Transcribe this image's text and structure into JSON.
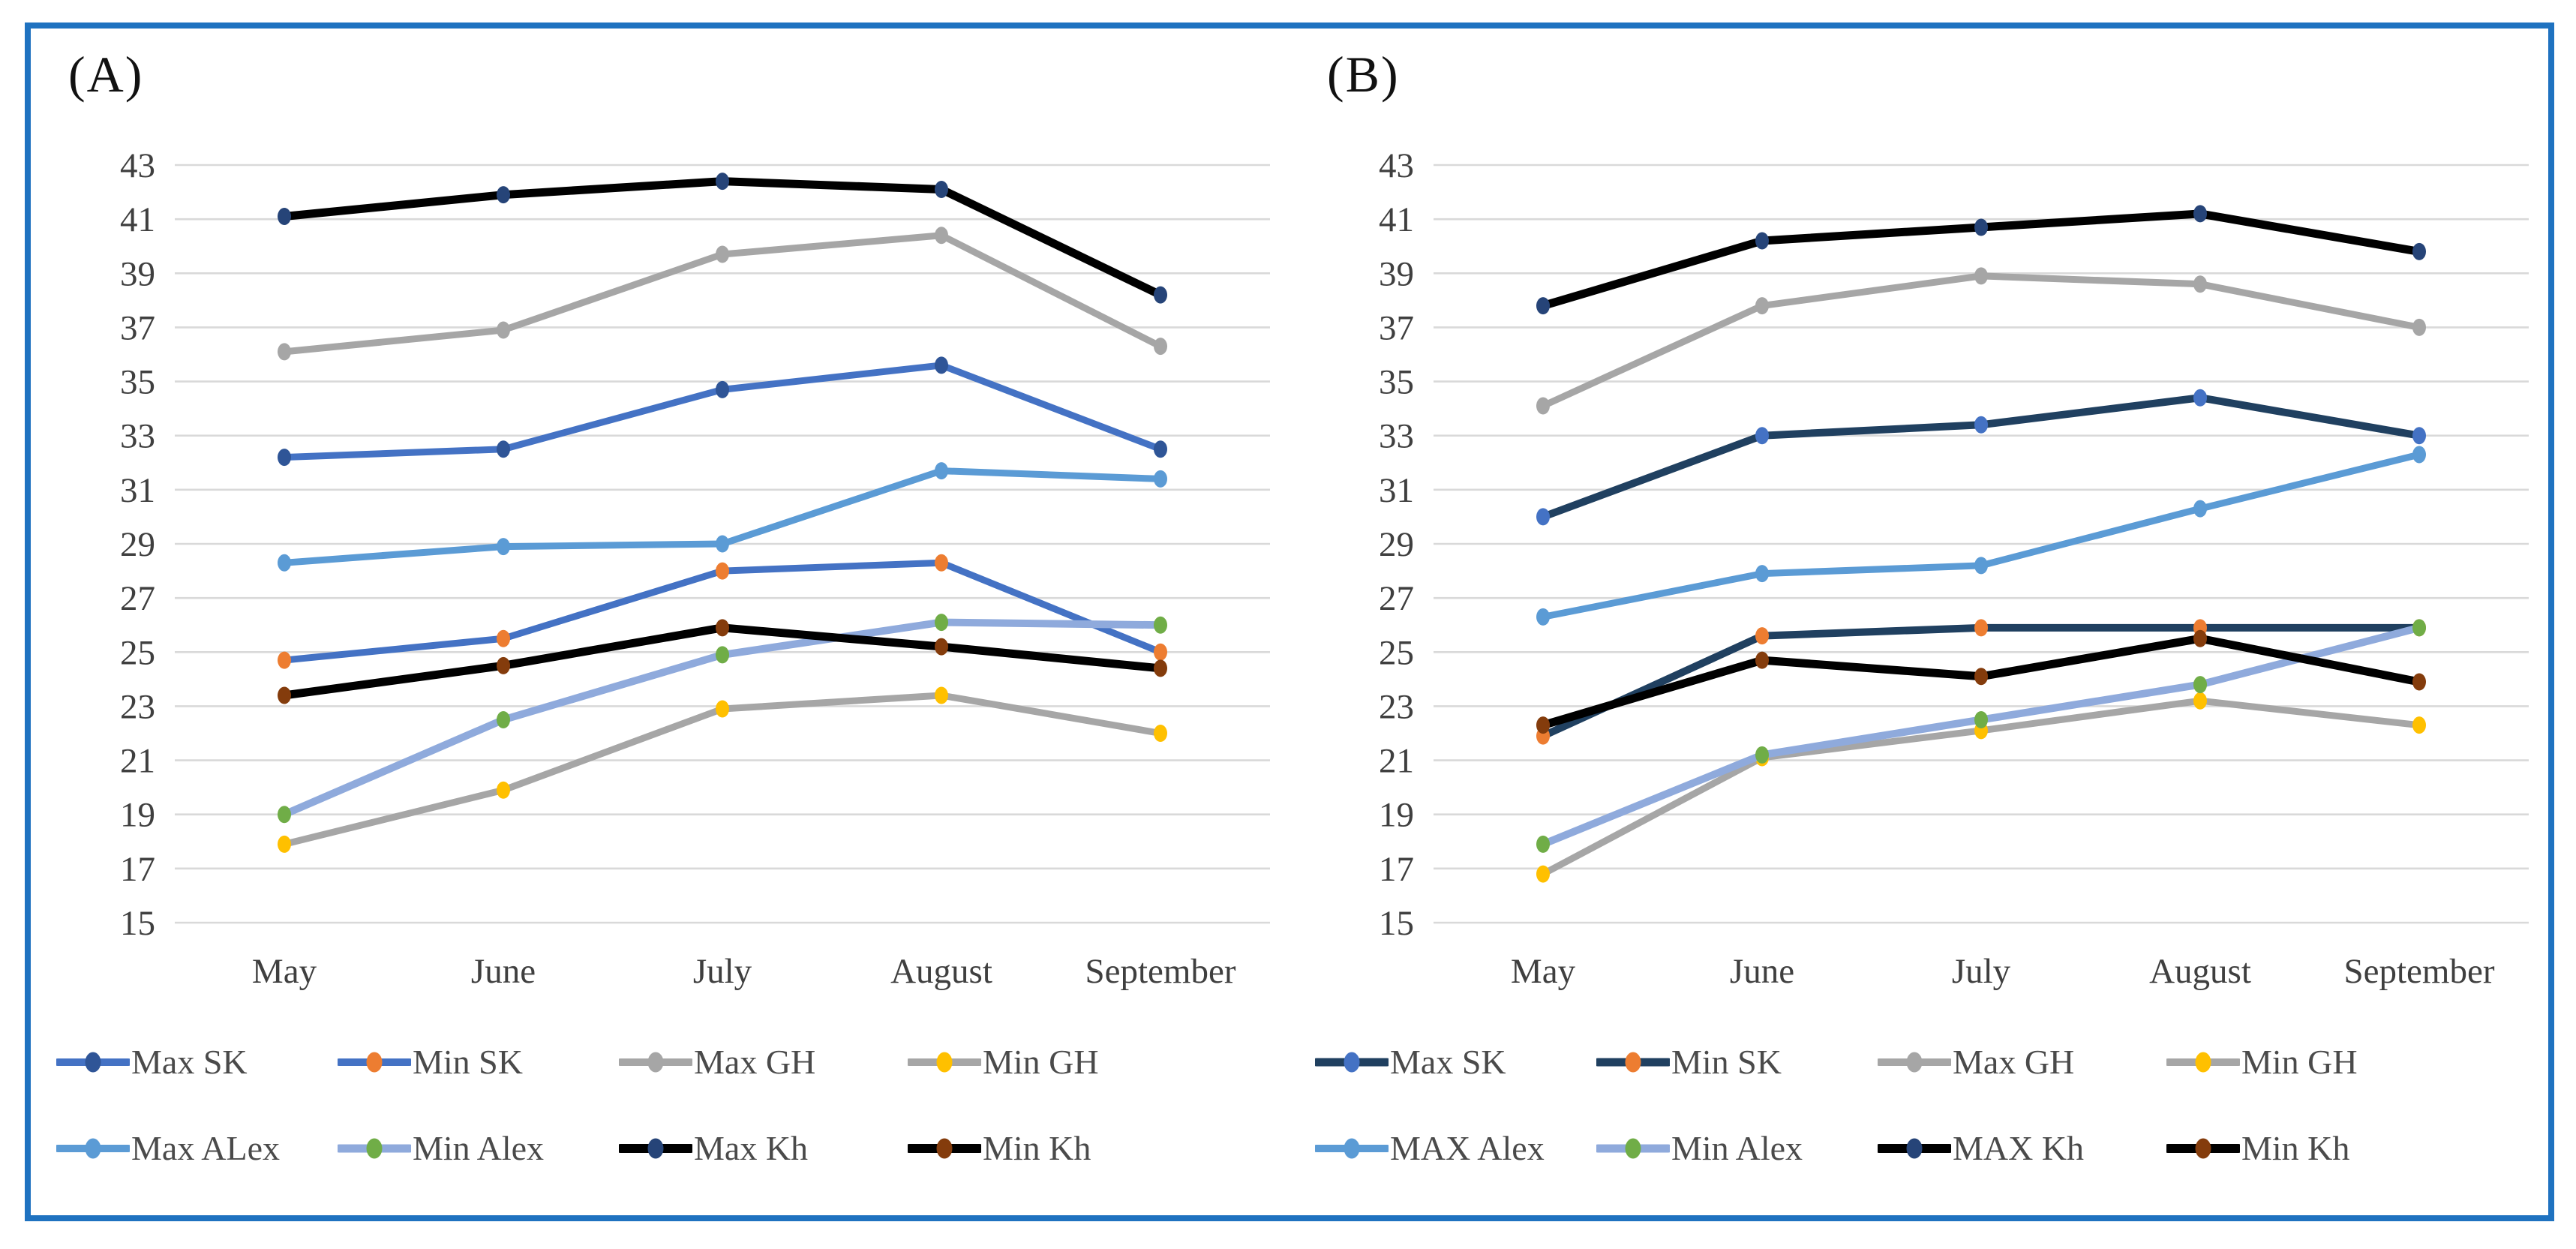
{
  "style": {
    "frame_border": "#1F72C0",
    "gridline": "#D9D9D9",
    "tick_text": "#3f3f3f",
    "month_text": "#3f3f3f",
    "legend_text": "#4a4a4a",
    "background": "#ffffff"
  },
  "panels": [
    {
      "title": "(A)"
    },
    {
      "title": "(B)"
    }
  ],
  "chart_data": [
    {
      "type": "line",
      "title": "(A)",
      "categories": [
        "May",
        "June",
        "July",
        "August",
        "September"
      ],
      "ylim": [
        15,
        43
      ],
      "yticks": [
        43,
        41,
        39,
        37,
        35,
        33,
        31,
        29,
        27,
        25,
        23,
        21,
        19,
        17,
        15
      ],
      "grid": "on",
      "legend_position": "bottom",
      "series": [
        {
          "name": "Max SK",
          "line_color": "#4472C4",
          "marker_color": "#2F5597",
          "line_width": 9,
          "values": [
            32.2,
            32.5,
            34.7,
            35.6,
            32.5
          ]
        },
        {
          "name": "Min SK",
          "line_color": "#4472C4",
          "marker_color": "#ED7D31",
          "line_width": 9,
          "values": [
            24.7,
            25.5,
            28.0,
            28.3,
            25.0
          ]
        },
        {
          "name": "Max GH",
          "line_color": "#A6A6A6",
          "marker_color": "#A6A6A6",
          "line_width": 9,
          "values": [
            36.1,
            36.9,
            39.7,
            40.4,
            36.3
          ]
        },
        {
          "name": "Min GH",
          "line_color": "#A6A6A6",
          "marker_color": "#FFC000",
          "line_width": 9,
          "values": [
            17.9,
            19.9,
            22.9,
            23.4,
            22.0
          ]
        },
        {
          "name": "Max ALex",
          "line_color": "#5B9BD5",
          "marker_color": "#5B9BD5",
          "line_width": 9,
          "values": [
            28.3,
            28.9,
            29.0,
            31.7,
            31.4
          ]
        },
        {
          "name": "Min Alex",
          "line_color": "#8FAADC",
          "marker_color": "#70AD47",
          "line_width": 10,
          "values": [
            19.0,
            22.5,
            24.9,
            26.1,
            26.0
          ]
        },
        {
          "name": "Max Kh",
          "line_color": "#000000",
          "marker_color": "#264478",
          "line_width": 11,
          "values": [
            41.1,
            41.9,
            42.4,
            42.1,
            38.2
          ]
        },
        {
          "name": "Min Kh",
          "line_color": "#000000",
          "marker_color": "#843C0C",
          "line_width": 11,
          "values": [
            23.4,
            24.5,
            25.9,
            25.2,
            24.4
          ]
        }
      ]
    },
    {
      "type": "line",
      "title": "(B)",
      "categories": [
        "May",
        "June",
        "July",
        "August",
        "September"
      ],
      "ylim": [
        15,
        43
      ],
      "yticks": [
        43,
        41,
        39,
        37,
        35,
        33,
        31,
        29,
        27,
        25,
        23,
        21,
        19,
        17,
        15
      ],
      "grid": "on",
      "legend_position": "bottom",
      "series": [
        {
          "name": "Max SK",
          "line_color": "#204060",
          "marker_color": "#4472C4",
          "line_width": 10,
          "values": [
            30.0,
            33.0,
            33.4,
            34.4,
            33.0
          ]
        },
        {
          "name": "Min SK",
          "line_color": "#204060",
          "marker_color": "#ED7D31",
          "line_width": 10,
          "values": [
            21.9,
            25.6,
            25.9,
            25.9,
            25.9
          ]
        },
        {
          "name": "Max GH",
          "line_color": "#A6A6A6",
          "marker_color": "#A6A6A6",
          "line_width": 9,
          "values": [
            34.1,
            37.8,
            38.9,
            38.6,
            37.0
          ]
        },
        {
          "name": "Min GH",
          "line_color": "#A6A6A6",
          "marker_color": "#FFC000",
          "line_width": 9,
          "values": [
            16.8,
            21.1,
            22.1,
            23.2,
            22.3
          ]
        },
        {
          "name": "MAX Alex",
          "line_color": "#5B9BD5",
          "marker_color": "#5B9BD5",
          "line_width": 9,
          "values": [
            26.3,
            27.9,
            28.2,
            30.3,
            32.3
          ]
        },
        {
          "name": "Min Alex",
          "line_color": "#8FAADC",
          "marker_color": "#70AD47",
          "line_width": 10,
          "values": [
            17.9,
            21.2,
            22.5,
            23.8,
            25.9
          ]
        },
        {
          "name": "MAX Kh",
          "line_color": "#000000",
          "marker_color": "#264478",
          "line_width": 11,
          "values": [
            37.8,
            40.2,
            40.7,
            41.2,
            39.8
          ]
        },
        {
          "name": "Min Kh",
          "line_color": "#000000",
          "marker_color": "#843C0C",
          "line_width": 11,
          "values": [
            22.3,
            24.7,
            24.1,
            25.5,
            23.9
          ]
        }
      ]
    }
  ]
}
